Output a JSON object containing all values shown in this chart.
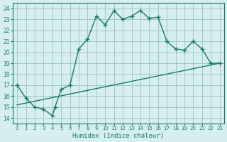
{
  "xlabel": "Humidex (Indice chaleur)",
  "ylabel": "",
  "xlim": [
    -0.5,
    23.5
  ],
  "ylim": [
    13.5,
    24.5
  ],
  "xticks": [
    0,
    1,
    2,
    3,
    4,
    5,
    6,
    7,
    8,
    9,
    10,
    11,
    12,
    13,
    14,
    15,
    16,
    17,
    18,
    19,
    20,
    21,
    22,
    23
  ],
  "yticks": [
    14,
    15,
    16,
    17,
    18,
    19,
    20,
    21,
    22,
    23,
    24
  ],
  "line_color": "#1a7a6e",
  "bg_color": "#d6eeee",
  "grid_color": "#a0c8c8",
  "main_x": [
    0,
    1,
    2,
    3,
    4,
    4.3,
    5,
    6,
    7,
    8,
    9,
    10,
    11,
    12,
    13,
    14,
    15,
    16,
    17,
    18,
    19,
    20,
    21,
    22,
    23
  ],
  "main_y": [
    17.0,
    15.8,
    15.0,
    14.8,
    14.2,
    15.0,
    16.6,
    17.0,
    20.3,
    21.2,
    23.3,
    22.5,
    23.8,
    23.0,
    23.3,
    23.8,
    23.1,
    23.2,
    21.0,
    20.3,
    20.2,
    21.0,
    20.3,
    19.0,
    19.0
  ],
  "trend_x": [
    0,
    23
  ],
  "trend_y": [
    15.2,
    19.0
  ]
}
